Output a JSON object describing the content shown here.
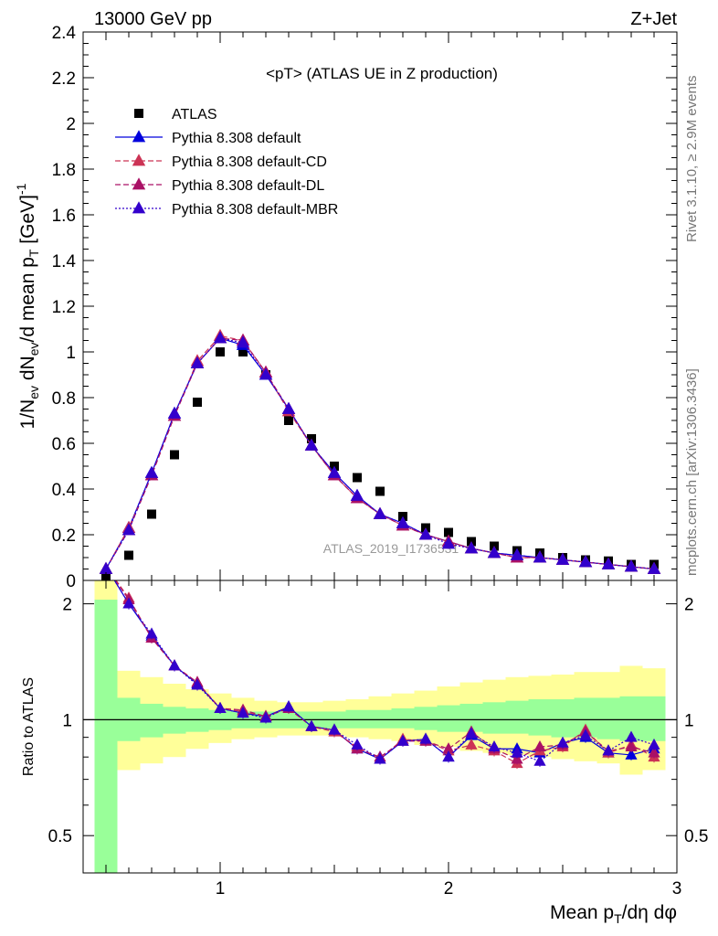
{
  "header": {
    "left": "13000 GeV pp",
    "right": "Z+Jet"
  },
  "side_text": {
    "rivet": "Rivet 3.1.10, ≥ 2.9M events",
    "mcplots": "mcplots.cern.ch [arXiv:1306.3436]"
  },
  "watermark": "ATLAS_2019_I1736531",
  "chart_data": [
    {
      "type": "scatter",
      "title": "<pT> (ATLAS UE in Z production)",
      "xlabel": "Mean p_T/dη dφ",
      "ylabel": "1/N_ev dN_ev/d mean p_T [GeV]^-1",
      "xlim": [
        0.4,
        3.0
      ],
      "ylim": [
        0,
        2.4
      ],
      "yticks": [
        "0",
        "0.2",
        "0.4",
        "0.6",
        "0.8",
        "1",
        "1.2",
        "1.4",
        "1.6",
        "1.8",
        "2",
        "2.2",
        "2.4"
      ],
      "xticks": [
        "1",
        "2",
        "3"
      ],
      "x": [
        0.5,
        0.6,
        0.7,
        0.8,
        0.9,
        1.0,
        1.1,
        1.2,
        1.3,
        1.4,
        1.5,
        1.6,
        1.7,
        1.8,
        1.9,
        2.0,
        2.1,
        2.2,
        2.3,
        2.4,
        2.5,
        2.6,
        2.7,
        2.8,
        2.9
      ],
      "legend_position": "top-left",
      "series": [
        {
          "name": "ATLAS",
          "color": "#000000",
          "marker": "square",
          "values": [
            0.02,
            0.11,
            0.29,
            0.55,
            0.78,
            1.0,
            1.0,
            0.9,
            0.7,
            0.62,
            0.5,
            0.45,
            0.39,
            0.28,
            0.23,
            0.21,
            0.17,
            0.15,
            0.13,
            0.12,
            0.1,
            0.09,
            0.085,
            0.07,
            0.07
          ]
        },
        {
          "name": "Pythia 8.308 default",
          "color": "#0000dd",
          "marker": "triangle",
          "line": "solid",
          "values": [
            0.05,
            0.23,
            0.47,
            0.73,
            0.95,
            1.06,
            1.03,
            0.9,
            0.75,
            0.59,
            0.47,
            0.37,
            0.29,
            0.25,
            0.2,
            0.17,
            0.14,
            0.12,
            0.11,
            0.1,
            0.09,
            0.08,
            0.07,
            0.06,
            0.05
          ]
        },
        {
          "name": "Pythia 8.308 default-CD",
          "color": "#cc3355",
          "marker": "triangle",
          "line": "dashed",
          "values": [
            0.05,
            0.23,
            0.46,
            0.72,
            0.96,
            1.07,
            1.05,
            0.91,
            0.74,
            0.59,
            0.46,
            0.36,
            0.29,
            0.24,
            0.2,
            0.17,
            0.14,
            0.12,
            0.1,
            0.1,
            0.09,
            0.08,
            0.07,
            0.06,
            0.05
          ]
        },
        {
          "name": "Pythia 8.308 default-DL",
          "color": "#aa1166",
          "marker": "triangle",
          "line": "dashed",
          "values": [
            0.05,
            0.22,
            0.46,
            0.72,
            0.95,
            1.06,
            1.05,
            0.91,
            0.75,
            0.59,
            0.46,
            0.36,
            0.29,
            0.24,
            0.2,
            0.17,
            0.14,
            0.12,
            0.1,
            0.1,
            0.09,
            0.08,
            0.07,
            0.06,
            0.05
          ]
        },
        {
          "name": "Pythia 8.308 default-MBR",
          "color": "#3300cc",
          "marker": "triangle",
          "line": "dotted",
          "values": [
            0.05,
            0.22,
            0.47,
            0.73,
            0.95,
            1.06,
            1.04,
            0.9,
            0.75,
            0.59,
            0.47,
            0.37,
            0.29,
            0.25,
            0.2,
            0.16,
            0.14,
            0.12,
            0.11,
            0.1,
            0.09,
            0.08,
            0.07,
            0.06,
            0.05
          ]
        }
      ]
    },
    {
      "type": "line",
      "ylabel": "Ratio to ATLAS",
      "xlabel": "Mean p_T/dη dφ",
      "xlim": [
        0.4,
        3.0
      ],
      "ylim": [
        0.4,
        2.3
      ],
      "yscale": "log",
      "yticks": [
        "0.5",
        "1",
        "2"
      ],
      "x": [
        0.5,
        0.6,
        0.7,
        0.8,
        0.9,
        1.0,
        1.1,
        1.2,
        1.3,
        1.4,
        1.5,
        1.6,
        1.7,
        1.8,
        1.9,
        2.0,
        2.1,
        2.2,
        2.3,
        2.4,
        2.5,
        2.6,
        2.7,
        2.8,
        2.9
      ],
      "band_inner": {
        "color": "#99ff99",
        "lo": [
          0.3,
          0.88,
          0.9,
          0.92,
          0.93,
          0.94,
          0.95,
          0.95,
          0.95,
          0.95,
          0.95,
          0.95,
          0.95,
          0.95,
          0.94,
          0.93,
          0.93,
          0.92,
          0.92,
          0.91,
          0.9,
          0.9,
          0.89,
          0.88,
          0.88
        ],
        "hi": [
          2.05,
          1.14,
          1.1,
          1.08,
          1.07,
          1.06,
          1.05,
          1.05,
          1.05,
          1.05,
          1.05,
          1.06,
          1.06,
          1.07,
          1.08,
          1.09,
          1.1,
          1.11,
          1.12,
          1.13,
          1.13,
          1.14,
          1.14,
          1.15,
          1.15
        ]
      },
      "band_outer": {
        "color": "#ffff99",
        "lo": [
          0.3,
          0.74,
          0.77,
          0.8,
          0.84,
          0.87,
          0.89,
          0.9,
          0.91,
          0.91,
          0.91,
          0.9,
          0.89,
          0.88,
          0.86,
          0.85,
          0.83,
          0.82,
          0.81,
          0.8,
          0.79,
          0.78,
          0.77,
          0.72,
          0.74
        ],
        "hi": [
          2.4,
          1.34,
          1.29,
          1.24,
          1.2,
          1.17,
          1.14,
          1.12,
          1.11,
          1.11,
          1.12,
          1.13,
          1.15,
          1.17,
          1.19,
          1.22,
          1.25,
          1.27,
          1.29,
          1.3,
          1.31,
          1.33,
          1.33,
          1.38,
          1.36
        ]
      },
      "series": [
        {
          "name": "Pythia 8.308 default",
          "color": "#0000dd",
          "line": "solid",
          "values": [
            2.5,
            2.0,
            1.65,
            1.38,
            1.24,
            1.07,
            1.04,
            1.02,
            1.08,
            0.96,
            0.94,
            0.84,
            0.79,
            0.88,
            0.89,
            0.8,
            0.91,
            0.84,
            0.84,
            0.82,
            0.87,
            0.9,
            0.82,
            0.81,
            0.84
          ]
        },
        {
          "name": "Pythia 8.308 default-CD",
          "color": "#cc3355",
          "line": "dashed",
          "values": [
            2.5,
            2.07,
            1.63,
            1.38,
            1.25,
            1.07,
            1.05,
            1.02,
            1.07,
            0.96,
            0.93,
            0.85,
            0.79,
            0.89,
            0.88,
            0.83,
            0.86,
            0.83,
            0.77,
            0.83,
            0.85,
            0.94,
            0.82,
            0.86,
            0.8
          ]
        },
        {
          "name": "Pythia 8.308 default-DL",
          "color": "#aa1166",
          "line": "dashed",
          "values": [
            2.5,
            2.05,
            1.63,
            1.38,
            1.25,
            1.07,
            1.06,
            1.02,
            1.07,
            0.96,
            0.94,
            0.84,
            0.8,
            0.88,
            0.88,
            0.84,
            0.93,
            0.84,
            0.79,
            0.85,
            0.86,
            0.93,
            0.83,
            0.85,
            0.82
          ]
        },
        {
          "name": "Pythia 8.308 default-MBR",
          "color": "#3300cc",
          "line": "dotted",
          "values": [
            2.5,
            2.0,
            1.67,
            1.38,
            1.23,
            1.07,
            1.04,
            1.01,
            1.08,
            0.96,
            0.94,
            0.86,
            0.79,
            0.88,
            0.89,
            0.8,
            0.92,
            0.85,
            0.82,
            0.78,
            0.87,
            0.91,
            0.83,
            0.9,
            0.86
          ]
        }
      ]
    }
  ]
}
